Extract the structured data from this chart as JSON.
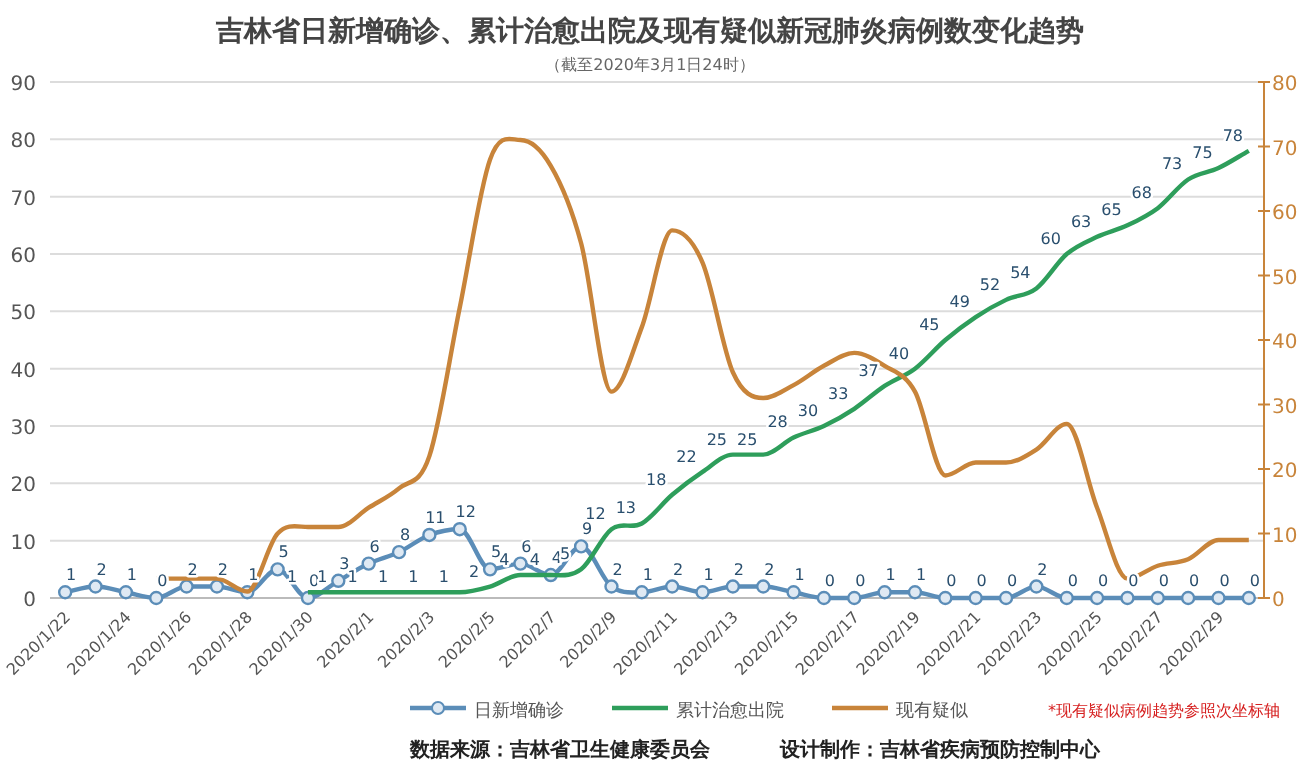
{
  "chart_data": {
    "type": "line",
    "title": "吉林省日新增确诊、累计治愈出院及现有疑似新冠肺炎病例数变化趋势",
    "subtitle": "（截至2020年3月1日24时）",
    "categories": [
      "2020/1/22",
      null,
      "2020/1/24",
      null,
      "2020/1/26",
      null,
      "2020/1/28",
      null,
      "2020/1/30",
      null,
      "2020/2/1",
      null,
      "2020/2/3",
      null,
      "2020/2/5",
      null,
      "2020/2/7",
      null,
      "2020/2/9",
      null,
      "2020/2/11",
      null,
      "2020/2/13",
      null,
      "2020/2/15",
      null,
      "2020/2/17",
      null,
      "2020/2/19",
      null,
      "2020/2/21",
      null,
      "2020/2/23",
      null,
      "2020/2/25",
      null,
      "2020/2/27",
      null,
      "2020/2/29",
      null
    ],
    "series": [
      {
        "name": "日新增确诊",
        "color": "#5b8db8",
        "marker": "circle",
        "values": [
          1,
          2,
          1,
          0,
          2,
          2,
          1,
          5,
          0,
          3,
          6,
          8,
          11,
          12,
          5,
          6,
          4,
          9,
          2,
          1,
          2,
          1,
          2,
          2,
          1,
          0,
          0,
          1,
          1,
          0,
          0,
          0,
          2,
          0,
          0,
          0,
          0,
          0,
          0,
          0
        ],
        "value_labels": [
          "1",
          "2",
          "1",
          "0",
          "2",
          "2",
          "1",
          "5",
          "0",
          "3",
          "6",
          "8",
          "11",
          "12",
          "5",
          "6",
          "4",
          "9",
          "2",
          "1",
          "2",
          "1",
          "2",
          "2",
          "1",
          "0",
          "0",
          "1",
          "1",
          "0",
          "0",
          "0",
          "2",
          "0",
          "0",
          "0",
          "0",
          "0",
          "0",
          "0"
        ]
      },
      {
        "name": "累计治愈出院",
        "color": "#2e9e5b",
        "marker": "none",
        "values": [
          null,
          null,
          null,
          null,
          null,
          null,
          null,
          null,
          1,
          1,
          1,
          1,
          1,
          1,
          2,
          4,
          4,
          5,
          12,
          13,
          18,
          22,
          25,
          25,
          28,
          30,
          33,
          37,
          40,
          45,
          49,
          52,
          54,
          60,
          63,
          65,
          68,
          73,
          75,
          78
        ],
        "value_labels": [
          null,
          null,
          null,
          null,
          null,
          null,
          null,
          null,
          "1",
          "1",
          "1",
          "1",
          "1",
          "1",
          "2",
          "4",
          "4",
          "5",
          "12",
          "13",
          "18",
          "22",
          "25",
          "25",
          "28",
          "30",
          "33",
          "37",
          "40",
          "45",
          "49",
          "52",
          "54",
          "60",
          "63",
          "65",
          "68",
          "73",
          "75",
          "78"
        ]
      },
      {
        "name": "现有疑似",
        "color": "#c8843a",
        "marker": "none",
        "axis": "y2",
        "values": [
          null,
          null,
          null,
          3,
          3,
          3,
          1,
          10,
          11,
          11,
          14,
          17,
          22,
          45,
          68,
          71,
          67,
          55,
          32,
          42,
          57,
          52,
          35,
          31,
          33,
          36,
          38,
          36,
          32,
          19,
          21,
          21,
          23,
          27,
          14,
          3,
          5,
          6,
          9,
          9
        ]
      }
    ],
    "ylim": [
      0,
      90
    ],
    "yticks": [
      0,
      10,
      20,
      30,
      40,
      50,
      60,
      70,
      80,
      90
    ],
    "y2lim": [
      0,
      80
    ],
    "y2ticks": [
      0,
      10,
      20,
      30,
      40,
      50,
      60,
      70,
      80
    ],
    "grid": "y",
    "legend": "bottom",
    "annotations": [
      "*现有疑似病例趋势参照次坐标轴",
      "数据来源：吉林省卫生健康委员会",
      "设计制作：吉林省疾病预防控制中心"
    ]
  }
}
